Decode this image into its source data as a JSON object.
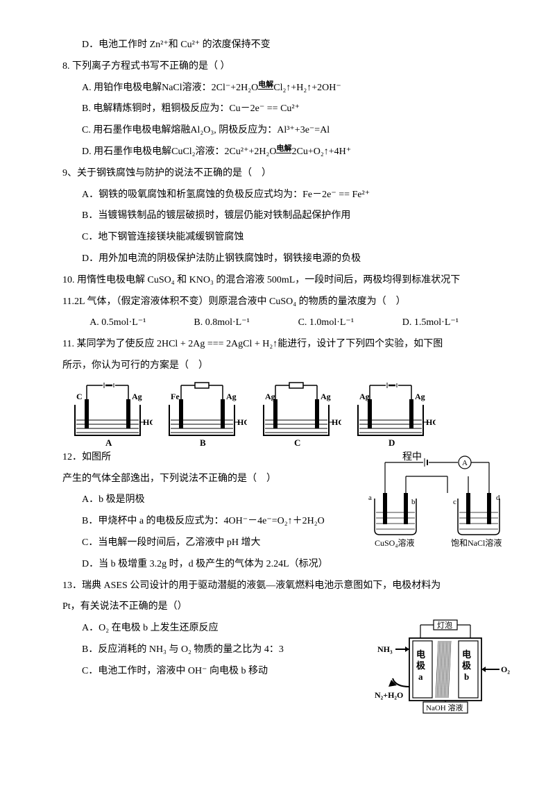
{
  "q7": {
    "optD": "D．电池工作时 Zn²⁺和 Cu²⁺ 的浓度保持不变"
  },
  "q8": {
    "stem": "8. 下列离子方程式书写不正确的是（ ）",
    "A_pre": "A. 用铂作电极电解NaCl溶液：2Cl⁻+2H₂O",
    "A_top": "电解",
    "A_post": "Cl₂↑+H₂↑+2OH⁻",
    "B": "B. 电解精炼铜时，粗铜极反应为：Cu－2e⁻ == Cu²⁺",
    "C": "C. 用石墨作电极电解熔融Al₂O₃, 阴极反应为：Al³⁺+3e⁻=Al",
    "D_pre": "D. 用石墨作电极电解CuCl₂溶液：2Cu²⁺+2H₂O",
    "D_top": "电解",
    "D_post": "2Cu+O₂↑+4H⁺"
  },
  "q9": {
    "stem": "9、关于钢铁腐蚀与防护的说法不正确的是（　）",
    "A": "A．钢铁的吸氧腐蚀和析氢腐蚀的负极反应式均为：Fe－2e⁻ == Fe²⁺",
    "B": "B．当镀锡铁制品的镀层破损时，镀层仍能对铁制品起保护作用",
    "C": "C．地下钢管连接镁块能减缓钢管腐蚀",
    "D": "D．用外加电流的阴极保护法防止钢铁腐蚀时，钢铁接电源的负极"
  },
  "q10": {
    "l1": "10. 用惰性电极电解 CuSO₄ 和 KNO₃ 的混合溶液 500mL，一段时间后，两极均得到标准状况下",
    "l2": "11.2L 气体，（假定溶液体积不变）则原混合液中 CuSO₄ 的物质的量浓度为（　）",
    "A": "A.  0.5mol·L⁻¹",
    "B": "B.  0.8mol·L⁻¹",
    "C": "C.  1.0mol·L⁻¹",
    "D": "D.  1.5mol·L⁻¹"
  },
  "q11": {
    "l1": "11. 某同学为了使反应 2HCl + 2Ag === 2AgCl + H₂↑能进行，设计了下列四个实验，如下图",
    "l2": "所示，你认为可行的方案是（　）",
    "diagrams": {
      "A": {
        "left": "C",
        "right": "Ag",
        "sol": "HCl",
        "label": "A",
        "topwire": true
      },
      "B": {
        "left": "Fe",
        "right": "Ag",
        "sol": "HCl",
        "label": "B",
        "topwire": true,
        "dev": "rect"
      },
      "C": {
        "left": "Ag",
        "right": "Ag",
        "sol": "HCl",
        "label": "C",
        "topwire": true,
        "dev": "rect"
      },
      "D": {
        "left": "Ag",
        "right": "Ag",
        "sol": "HCl",
        "label": "D",
        "topwire": true
      }
    }
  },
  "q12": {
    "pre": "12．如图所",
    "tail": "程中",
    "l2": "产生的气体全部逸出，下列说法不正确的是（　）",
    "A": "A．b 极是阴极",
    "B": "B．甲烧杯中 a 的电极反应式为：4OH⁻－4e⁻=O₂↑＋2H₂O",
    "C": "C．当电解一段时间后，乙溶液中 pH 增大",
    "D": "D．当 b 极增重 3.2g 时，d 极产生的气体为 2.24L（标况）",
    "diag": {
      "left_sol": "CuSO₄溶液",
      "right_sol": "饱和NaCl溶液",
      "labels": {
        "a": "a",
        "b": "b",
        "c": "c",
        "d": "d"
      },
      "meter": "A",
      "colors": {
        "line": "#000",
        "fill": "#fff"
      }
    }
  },
  "q13": {
    "l1": "13．瑞典 ASES 公司设计的用于驱动潜艇的液氨—液氧燃料电池示意图如下，电极材料为",
    "l2": "Pt，有关说法不正确的是（）",
    "A": "A．O₂ 在电极 b 上发生还原反应",
    "B": "B．反应消耗的 NH₃ 与 O₂ 物质的量之比为 4：3",
    "C": "C．电池工作时，溶液中 OH⁻ 向电极 b 移动",
    "diag": {
      "top": "灯泡",
      "left_in": "NH₃",
      "left_out": "N₂+H₂O",
      "right_in": "O₂",
      "left_e": "电\\n极\\na",
      "right_e": "电\\n极\\nb",
      "bottom": "NaOH 溶液",
      "colors": {
        "stroke": "#000",
        "fill": "#fff"
      }
    }
  },
  "style": {
    "page_bg": "#ffffff",
    "text_color": "#000000",
    "font_size_pt": 10.5
  }
}
